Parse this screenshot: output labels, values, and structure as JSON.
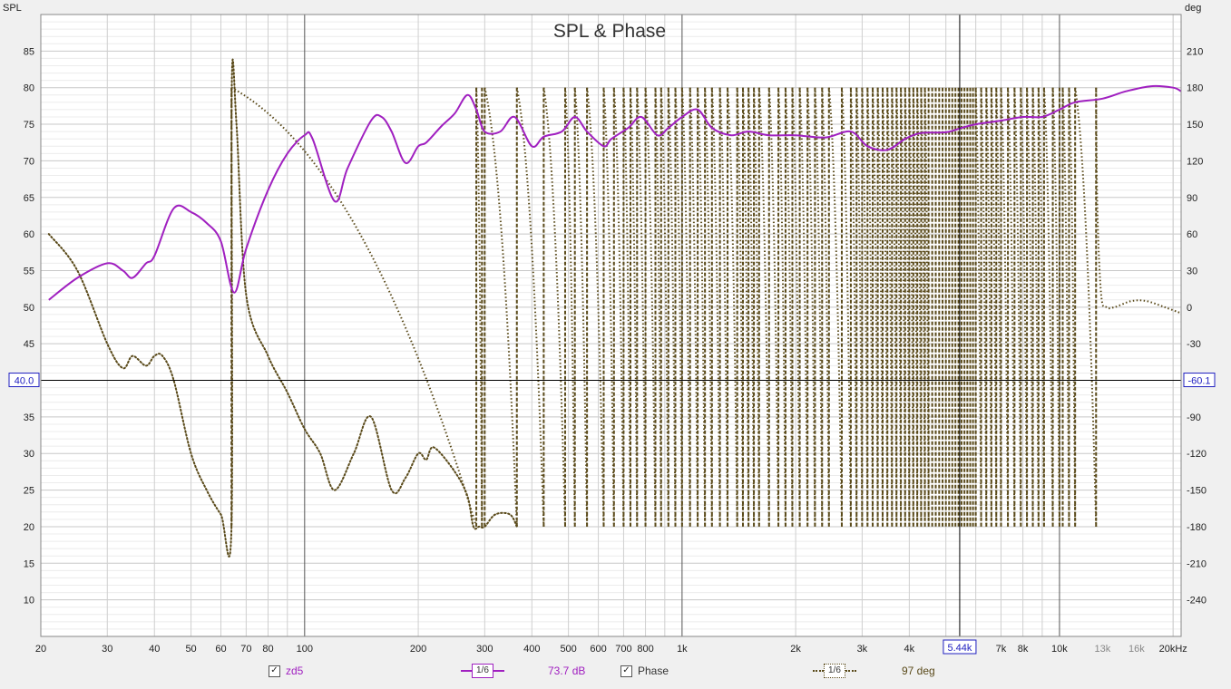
{
  "chart_data": {
    "type": "line",
    "title": "SPL & Phase",
    "left_axis": {
      "label": "SPL",
      "ylim": [
        5,
        90
      ],
      "ticks": [
        10,
        15,
        20,
        25,
        30,
        35,
        40,
        45,
        50,
        55,
        60,
        65,
        70,
        75,
        80,
        85
      ]
    },
    "right_axis": {
      "label": "deg",
      "ylim": [
        -270,
        240
      ],
      "ticks": [
        -240,
        -210,
        -180,
        -150,
        -120,
        -90,
        -60,
        -30,
        0,
        30,
        60,
        90,
        120,
        150,
        180,
        210
      ]
    },
    "x_axis": {
      "scale": "log",
      "xlim": [
        20,
        21000
      ],
      "tick_labels": [
        {
          "v": 20,
          "t": "20"
        },
        {
          "v": 30,
          "t": "30"
        },
        {
          "v": 40,
          "t": "40"
        },
        {
          "v": 50,
          "t": "50"
        },
        {
          "v": 60,
          "t": "60"
        },
        {
          "v": 70,
          "t": "70"
        },
        {
          "v": 80,
          "t": "80"
        },
        {
          "v": 100,
          "t": "100"
        },
        {
          "v": 200,
          "t": "200"
        },
        {
          "v": 300,
          "t": "300"
        },
        {
          "v": 400,
          "t": "400"
        },
        {
          "v": 500,
          "t": "500"
        },
        {
          "v": 600,
          "t": "600"
        },
        {
          "v": 700,
          "t": "700"
        },
        {
          "v": 800,
          "t": "800"
        },
        {
          "v": 1000,
          "t": "1k"
        },
        {
          "v": 2000,
          "t": "2k"
        },
        {
          "v": 3000,
          "t": "3k"
        },
        {
          "v": 4000,
          "t": "4k"
        },
        {
          "v": 7000,
          "t": "7k"
        },
        {
          "v": 8000,
          "t": "8k"
        },
        {
          "v": 10000,
          "t": "10k"
        },
        {
          "v": 13000,
          "t": "13k"
        },
        {
          "v": 16000,
          "t": "16k"
        },
        {
          "v": 20000,
          "t": "20kHz"
        }
      ]
    },
    "cursor": {
      "freq_label": "5.44k",
      "spl_label": "40.0",
      "phase_label": "-60.1",
      "freq": 5440,
      "spl": 40.0
    },
    "series": [
      {
        "name": "zd5",
        "axis": "left",
        "color": "#a020c0",
        "style": "solid",
        "x": [
          21,
          25,
          30,
          33,
          35,
          38,
          40,
          45,
          50,
          55,
          60,
          65,
          70,
          80,
          90,
          100,
          105,
          120,
          130,
          150,
          160,
          170,
          185,
          200,
          210,
          230,
          250,
          270,
          285,
          300,
          330,
          360,
          400,
          430,
          480,
          520,
          560,
          620,
          650,
          720,
          780,
          860,
          920,
          1000,
          1100,
          1200,
          1350,
          1500,
          1700,
          2000,
          2400,
          2800,
          3100,
          3500,
          3900,
          4300,
          5000,
          5500,
          6000,
          7000,
          8000,
          9000,
          10000,
          11000,
          13000,
          15000,
          17500,
          20000,
          21000
        ],
        "y": [
          51,
          54,
          56,
          55,
          54,
          56,
          57,
          63.5,
          63,
          61.5,
          59,
          52,
          58,
          66,
          71,
          73.5,
          73,
          64.5,
          69,
          75.5,
          76,
          74,
          69.7,
          72,
          72.5,
          74.7,
          76.5,
          79,
          77,
          74,
          74,
          76,
          72,
          73.3,
          74,
          76,
          74,
          72,
          73,
          74.5,
          76,
          73.5,
          74.5,
          76,
          77,
          74.5,
          73.5,
          74,
          73.5,
          73.5,
          73.2,
          74,
          72,
          71.5,
          73,
          73.8,
          73.9,
          74.5,
          75,
          75.5,
          76,
          76,
          77,
          78,
          78.5,
          79.5,
          80.2,
          80,
          79.5
        ]
      },
      {
        "name": "Phase",
        "axis": "right",
        "color": "#5a4a1a",
        "style": "dotted",
        "x": [
          21,
          25,
          30,
          33,
          35,
          38,
          40,
          42,
          45,
          50,
          55,
          60,
          64,
          64.1,
          66,
          70,
          80,
          90,
          100,
          110,
          120,
          135,
          150,
          170,
          185,
          200,
          210,
          220,
          250,
          270,
          280,
          290,
          300,
          320,
          350,
          365
        ],
        "y": [
          60,
          30,
          -30,
          -50,
          -40,
          -48,
          -40,
          -40,
          -60,
          -120,
          -150,
          -170,
          -180,
          180,
          150,
          10,
          -40,
          -70,
          -100,
          -120,
          -150,
          -120,
          -90,
          -150,
          -140,
          -120,
          -125,
          -115,
          -135,
          -155,
          -180,
          -180,
          -180,
          -170,
          -170,
          -180
        ]
      }
    ],
    "phase_wrap_freqs": [
      64,
      285,
      295,
      300,
      365,
      430,
      490,
      520,
      560,
      620,
      660,
      700,
      730,
      760,
      800,
      850,
      880,
      920,
      960,
      1000,
      1050,
      1100,
      1150,
      1200,
      1260,
      1320,
      1400,
      1450,
      1500,
      1550,
      1600,
      1700,
      1800,
      1880,
      1960,
      2050,
      2150,
      2250,
      2350,
      2450,
      2650,
      2800,
      2900,
      3000,
      3100,
      3200,
      3300,
      3400,
      3500,
      3600,
      3700,
      3800,
      3900,
      4000,
      4100,
      4200,
      4300,
      4400,
      4500,
      4600,
      4700,
      4800,
      4900,
      5000,
      5100,
      5200,
      5300,
      5400,
      5500,
      5600,
      5700,
      5800,
      5900,
      6000,
      6200,
      6400,
      6600,
      6800,
      7000,
      7300,
      7600,
      7900,
      8200,
      8500,
      8800,
      9100,
      9600,
      10000,
      10200,
      10600,
      11000,
      12500
    ],
    "phase_tail": {
      "x": [
        12500,
        12600,
        12900,
        13300,
        14000,
        15500,
        17000,
        19000,
        21000
      ],
      "y": [
        180,
        80,
        10,
        0,
        0,
        5,
        5,
        0,
        -5
      ]
    }
  },
  "legend": {
    "spl_name": "zd5",
    "spl_value": "73.7 dB",
    "phase_name": "Phase",
    "phase_value": "97 deg",
    "smoothing": "1/6",
    "check": "✓"
  }
}
